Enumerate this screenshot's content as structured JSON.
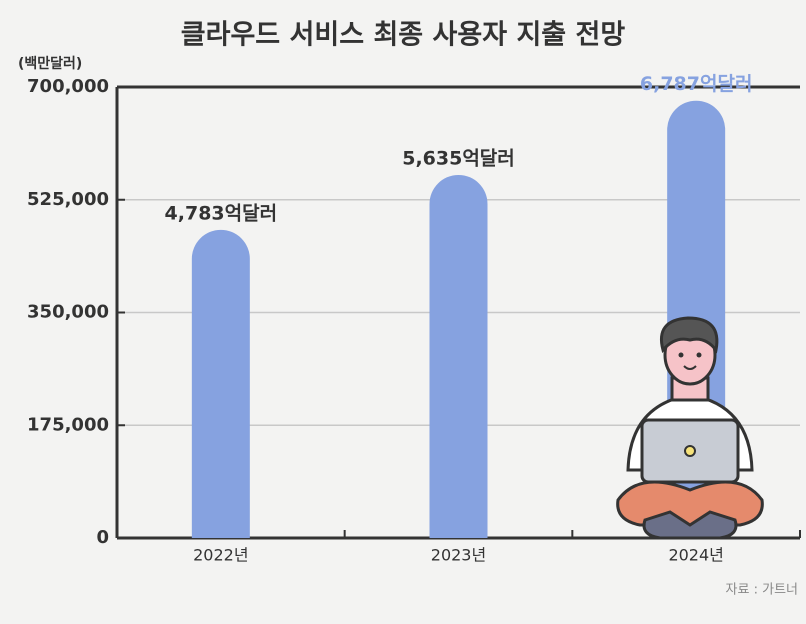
{
  "chart_data": {
    "type": "bar",
    "title": "클라우드 서비스 최종 사용자 지출 전망",
    "y_unit": "(백만달러)",
    "categories": [
      "2022년",
      "2023년",
      "2024년"
    ],
    "values": [
      478300,
      563500,
      678700
    ],
    "value_labels": [
      "4,783억달러",
      "5,635억달러",
      "6,787억달러"
    ],
    "value_label_colors": [
      "#333333",
      "#333333",
      "#86a2e0"
    ],
    "color": "#86a2e0",
    "ylim": [
      0,
      700000
    ],
    "yticks": [
      0,
      {
        "value": 175000,
        "label": "175,000"
      },
      {
        "value": 350000,
        "label": "350,000"
      },
      {
        "value": 525000,
        "label": "525,000"
      },
      {
        "value": 700000,
        "label": "700,000"
      }
    ],
    "grid": true,
    "source": "자료 : 가트너"
  }
}
